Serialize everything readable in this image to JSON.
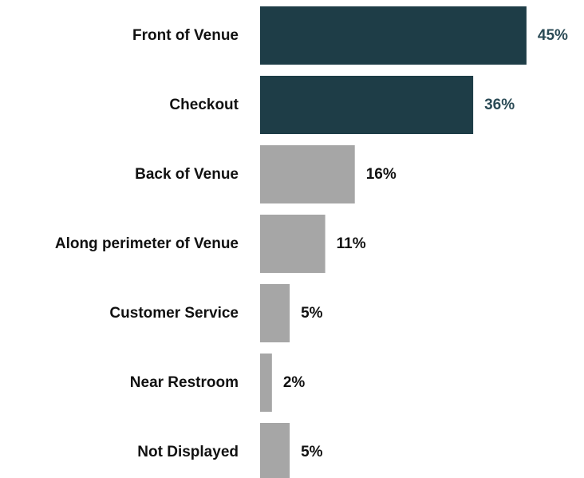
{
  "chart_data": {
    "type": "bar",
    "orientation": "horizontal",
    "categories": [
      "Front of Venue",
      "Checkout",
      "Back of Venue",
      "Along perimeter of Venue",
      "Customer Service",
      "Near Restroom",
      "Not Displayed"
    ],
    "values": [
      45,
      36,
      16,
      11,
      5,
      2,
      5
    ],
    "value_labels": [
      "45%",
      "36%",
      "16%",
      "11%",
      "5%",
      "2%",
      "5%"
    ],
    "highlighted": [
      true,
      true,
      false,
      false,
      false,
      false,
      false
    ],
    "unit": "%",
    "title": "",
    "xlabel": "",
    "ylabel": "",
    "grid": false,
    "legend": "none"
  },
  "colors": {
    "highlight_bar": "#1e3d47",
    "highlight_label": "#2a4a55",
    "default_bar": "#a6a6a6",
    "default_label": "#111111"
  }
}
